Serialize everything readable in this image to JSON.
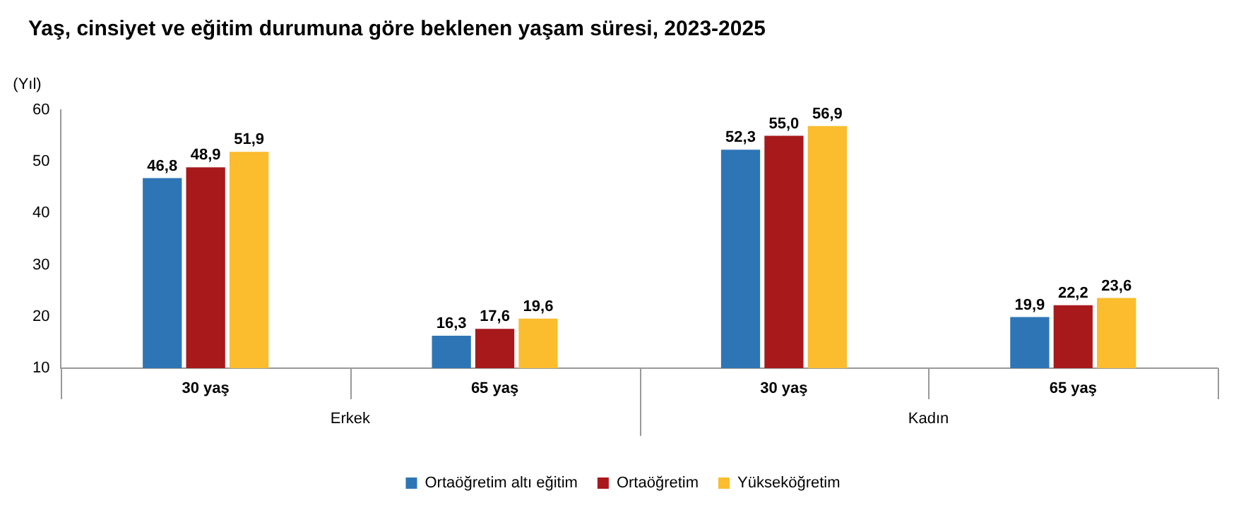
{
  "chart_data": {
    "type": "bar",
    "title": "Yaş, cinsiyet ve eğitim durumuna göre beklenen yaşam süresi, 2023-2025",
    "ylabel": "(Yıl)",
    "categories": [
      "30 yaş",
      "65 yaş",
      "30 yaş",
      "65 yaş"
    ],
    "annotations": [
      "Erkek",
      "Kadın"
    ],
    "series": [
      {
        "name": "Ortaöğretim altı eğitim",
        "color": "#2e75b6",
        "values": [
          46.8,
          16.3,
          52.3,
          19.9
        ],
        "value_labels": [
          "46,8",
          "16,3",
          "52,3",
          "19,9"
        ]
      },
      {
        "name": "Ortaöğretim",
        "color": "#a8191c",
        "values": [
          48.9,
          17.6,
          55.0,
          22.2
        ],
        "value_labels": [
          "48,9",
          "17,6",
          "55,0",
          "22,2"
        ]
      },
      {
        "name": "Yükseköğretim",
        "color": "#fbbc2d",
        "values": [
          51.9,
          19.6,
          56.9,
          23.6
        ],
        "value_labels": [
          "51,9",
          "19,6",
          "56,9",
          "23,6"
        ]
      }
    ],
    "ylim": [
      10,
      60
    ],
    "yticks": [
      10,
      20,
      30,
      40,
      50,
      60
    ],
    "grid": false,
    "legend": "bottom"
  }
}
